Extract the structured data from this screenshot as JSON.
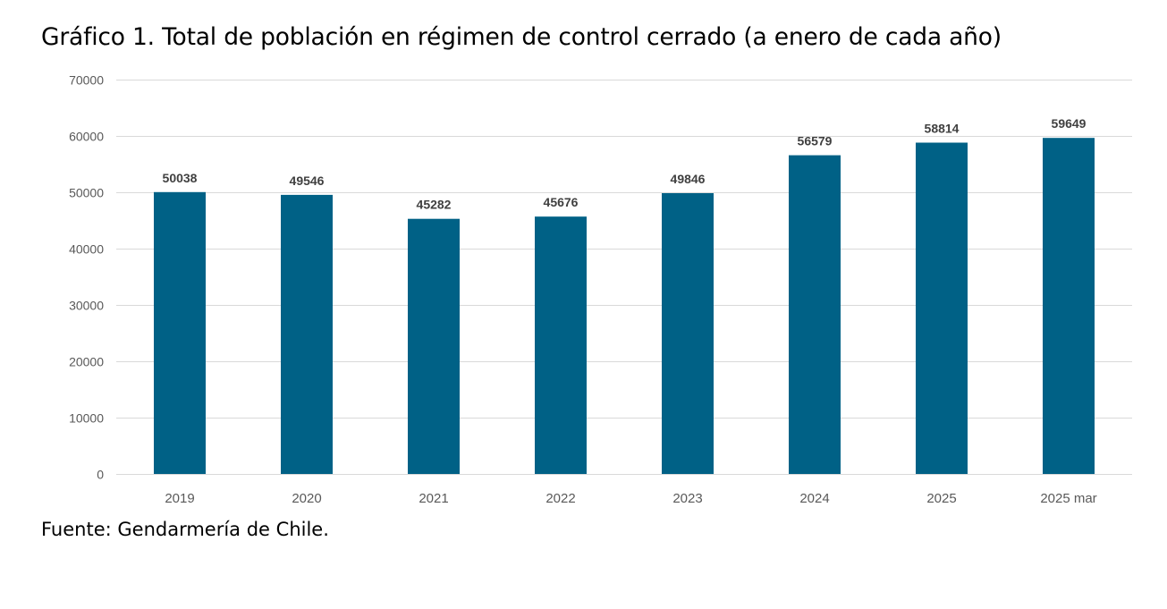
{
  "title": "Gráfico 1. Total de población en régimen de control cerrado (a enero de cada año)",
  "source": "Fuente: Gendarmería de Chile.",
  "colors": {
    "bar": "#006186",
    "grid": "#d9d9d9",
    "axis_text": "#595959",
    "data_label": "#404040"
  },
  "chart_data": {
    "type": "bar",
    "title": "Gráfico 1. Total de población en régimen de control cerrado (a enero de cada año)",
    "xlabel": "",
    "ylabel": "",
    "categories": [
      "2019",
      "2020",
      "2021",
      "2022",
      "2023",
      "2024",
      "2025",
      "2025 mar"
    ],
    "values": [
      50038,
      49546,
      45282,
      45676,
      49846,
      56579,
      58814,
      59649
    ],
    "data_labels": [
      "50038",
      "49546",
      "45282",
      "45676",
      "49846",
      "56579",
      "58814",
      "59649"
    ],
    "ylim": [
      0,
      70000
    ],
    "yticks": [
      0,
      10000,
      20000,
      30000,
      40000,
      50000,
      60000,
      70000
    ],
    "ytick_labels": [
      "0",
      "10000",
      "20000",
      "30000",
      "40000",
      "50000",
      "60000",
      "70000"
    ],
    "grid": true,
    "legend": "none"
  }
}
